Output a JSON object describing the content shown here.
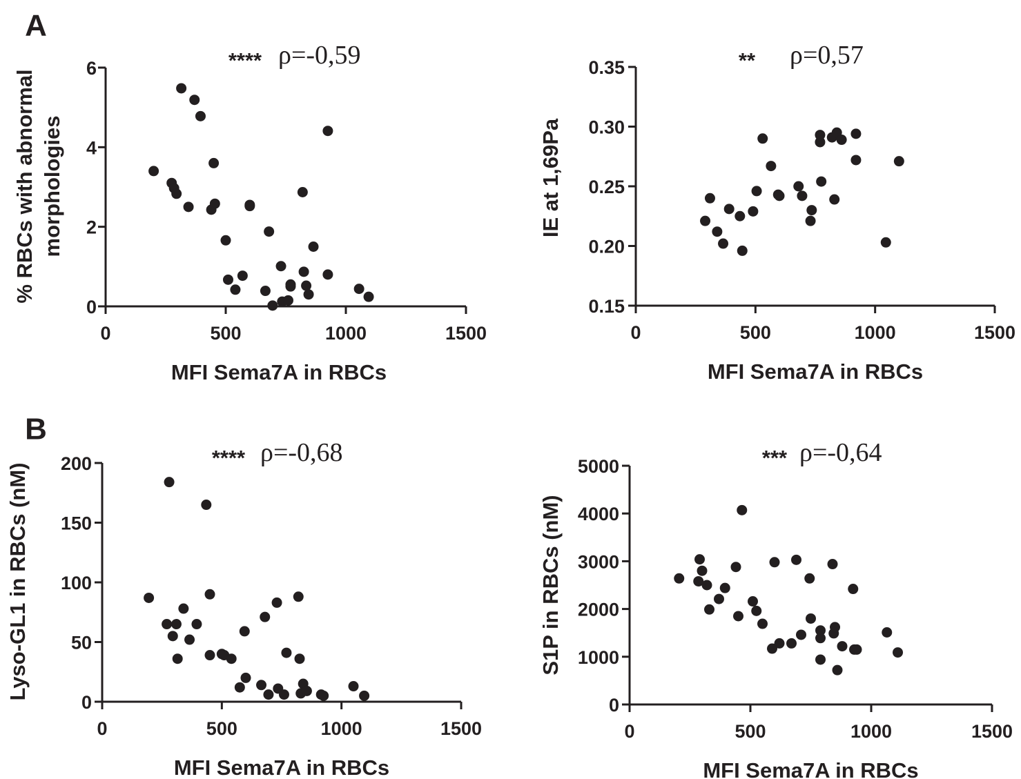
{
  "panel_letters": [
    {
      "label": "A",
      "x": 52,
      "y": 40
    },
    {
      "label": "B",
      "x": 52,
      "y": 625
    }
  ],
  "chart_data": [
    {
      "type": "scatter",
      "id": "morph",
      "stars": "****",
      "rho": "ρ=-0,59",
      "xlabel": "MFI Sema7A in RBCs",
      "ylabel": [
        "% RBCs with abnormal",
        "morphologies"
      ],
      "xlim": [
        0,
        1500
      ],
      "ylim": [
        0,
        6
      ],
      "xticks": [
        0,
        500,
        1000,
        1500
      ],
      "yticks": [
        0,
        2,
        4,
        6
      ],
      "yticklabels": [
        "0",
        "2",
        "4",
        "6"
      ],
      "points": [
        [
          200,
          3.4
        ],
        [
          275,
          3.1
        ],
        [
          285,
          2.97
        ],
        [
          295,
          2.83
        ],
        [
          315,
          5.48
        ],
        [
          345,
          2.5
        ],
        [
          370,
          5.19
        ],
        [
          395,
          4.78
        ],
        [
          440,
          2.43
        ],
        [
          450,
          3.6
        ],
        [
          455,
          2.58
        ],
        [
          500,
          1.66
        ],
        [
          510,
          0.67
        ],
        [
          540,
          0.42
        ],
        [
          570,
          0.77
        ],
        [
          600,
          2.55
        ],
        [
          600,
          2.52
        ],
        [
          665,
          0.39
        ],
        [
          680,
          1.88
        ],
        [
          695,
          0.02
        ],
        [
          730,
          1.01
        ],
        [
          735,
          0.12
        ],
        [
          760,
          0.15
        ],
        [
          770,
          0.55
        ],
        [
          770,
          0.5
        ],
        [
          820,
          2.87
        ],
        [
          825,
          0.87
        ],
        [
          835,
          0.52
        ],
        [
          845,
          0.3
        ],
        [
          865,
          1.5
        ],
        [
          925,
          0.8
        ],
        [
          925,
          4.41
        ],
        [
          1055,
          0.44
        ],
        [
          1095,
          0.24
        ]
      ]
    },
    {
      "type": "scatter",
      "id": "ie",
      "stars": "**",
      "rho": "ρ=0,57",
      "xlabel": "MFI Sema7A in RBCs",
      "ylabel": [
        "IE at 1,69Pa"
      ],
      "xlim": [
        0,
        1500
      ],
      "ylim": [
        0.15,
        0.35
      ],
      "xticks": [
        0,
        500,
        1000,
        1500
      ],
      "yticks": [
        0.15,
        0.2,
        0.25,
        0.3,
        0.35
      ],
      "yticklabels": [
        "0.15",
        "0.20",
        "0.25",
        "0.30",
        "0.35"
      ],
      "points": [
        [
          290,
          0.221
        ],
        [
          310,
          0.24
        ],
        [
          340,
          0.212
        ],
        [
          365,
          0.202
        ],
        [
          390,
          0.231
        ],
        [
          435,
          0.225
        ],
        [
          445,
          0.196
        ],
        [
          490,
          0.229
        ],
        [
          505,
          0.246
        ],
        [
          530,
          0.29
        ],
        [
          565,
          0.267
        ],
        [
          595,
          0.243
        ],
        [
          600,
          0.242
        ],
        [
          680,
          0.25
        ],
        [
          695,
          0.242
        ],
        [
          730,
          0.221
        ],
        [
          735,
          0.23
        ],
        [
          770,
          0.287
        ],
        [
          770,
          0.293
        ],
        [
          775,
          0.254
        ],
        [
          820,
          0.291
        ],
        [
          830,
          0.239
        ],
        [
          840,
          0.295
        ],
        [
          860,
          0.289
        ],
        [
          920,
          0.272
        ],
        [
          920,
          0.294
        ],
        [
          1045,
          0.203
        ],
        [
          1100,
          0.271
        ]
      ]
    },
    {
      "type": "scatter",
      "id": "lyso",
      "stars": "****",
      "rho": "ρ=-0,68",
      "xlabel": "MFI Sema7A in RBCs",
      "ylabel": [
        "Lyso-GL1 in RBCs (nM)"
      ],
      "xlim": [
        0,
        1500
      ],
      "ylim": [
        0,
        200
      ],
      "xticks": [
        0,
        500,
        1000,
        1500
      ],
      "yticks": [
        0,
        50,
        100,
        150,
        200
      ],
      "yticklabels": [
        "0",
        "50",
        "100",
        "150",
        "200"
      ],
      "points": [
        [
          195,
          87
        ],
        [
          270,
          65
        ],
        [
          280,
          184
        ],
        [
          295,
          55
        ],
        [
          310,
          65
        ],
        [
          315,
          36
        ],
        [
          340,
          78
        ],
        [
          365,
          52
        ],
        [
          395,
          65
        ],
        [
          435,
          165
        ],
        [
          450,
          90
        ],
        [
          450,
          39
        ],
        [
          500,
          40
        ],
        [
          510,
          39
        ],
        [
          540,
          36
        ],
        [
          575,
          12
        ],
        [
          595,
          59
        ],
        [
          600,
          20
        ],
        [
          665,
          14
        ],
        [
          680,
          71
        ],
        [
          695,
          6
        ],
        [
          730,
          83
        ],
        [
          735,
          11
        ],
        [
          760,
          6
        ],
        [
          770,
          41
        ],
        [
          820,
          88
        ],
        [
          825,
          36
        ],
        [
          830,
          7
        ],
        [
          840,
          15
        ],
        [
          855,
          9
        ],
        [
          915,
          6
        ],
        [
          925,
          5
        ],
        [
          1050,
          13
        ],
        [
          1095,
          5
        ]
      ]
    },
    {
      "type": "scatter",
      "id": "s1p",
      "stars": "***",
      "rho": "ρ=-0,64",
      "xlabel": "MFI Sema7A in RBCs",
      "ylabel": [
        "S1P in RBCs (nM)"
      ],
      "xlim": [
        0,
        1500
      ],
      "ylim": [
        0,
        5000
      ],
      "xticks": [
        0,
        500,
        1000,
        1500
      ],
      "yticks": [
        0,
        1000,
        2000,
        3000,
        4000,
        5000
      ],
      "yticklabels": [
        "0",
        "1000",
        "2000",
        "3000",
        "4000",
        "5000"
      ],
      "points": [
        [
          205,
          2640
        ],
        [
          285,
          2580
        ],
        [
          290,
          3040
        ],
        [
          300,
          2800
        ],
        [
          320,
          2500
        ],
        [
          330,
          1990
        ],
        [
          370,
          2210
        ],
        [
          395,
          2440
        ],
        [
          440,
          2880
        ],
        [
          450,
          1850
        ],
        [
          465,
          4070
        ],
        [
          510,
          2160
        ],
        [
          525,
          1960
        ],
        [
          550,
          1690
        ],
        [
          590,
          1170
        ],
        [
          600,
          2980
        ],
        [
          620,
          1280
        ],
        [
          670,
          1280
        ],
        [
          690,
          3030
        ],
        [
          710,
          1460
        ],
        [
          745,
          2640
        ],
        [
          750,
          1800
        ],
        [
          790,
          1550
        ],
        [
          790,
          1390
        ],
        [
          790,
          940
        ],
        [
          840,
          2940
        ],
        [
          845,
          1490
        ],
        [
          850,
          1620
        ],
        [
          860,
          720
        ],
        [
          880,
          1220
        ],
        [
          925,
          2420
        ],
        [
          930,
          1150
        ],
        [
          940,
          1150
        ],
        [
          1065,
          1510
        ],
        [
          1110,
          1090
        ]
      ]
    }
  ]
}
